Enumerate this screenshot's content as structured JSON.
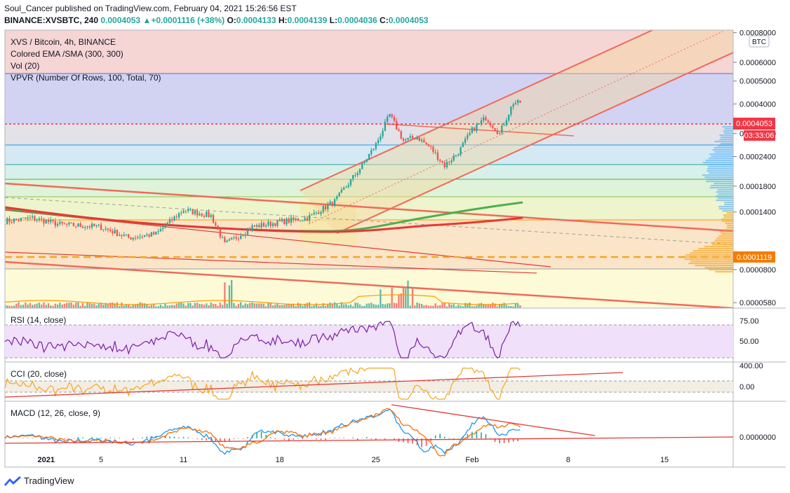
{
  "header": {
    "publisher_line": "Soul_Cancer published on TradingView.com, February 04, 2021 15:26:56 EST",
    "symbol": "BINANCE:XVSBTC, 240",
    "last": "0.0004053",
    "arrow": "▲",
    "change": "+0.0001116 (+38%)",
    "o_label": "O:",
    "o": "0.0004133",
    "h_label": "H:",
    "h": "0.0004139",
    "l_label": "L:",
    "l": "0.0004036",
    "c_label": "C:",
    "c": "0.0004053"
  },
  "legend": {
    "title": "XVS / Bitcoin, 4h, BINANCE",
    "ema": "Colored EMA /SMA (300, 300)",
    "vol": "Vol (20)",
    "vpvr": "VPVR (Number Of Rows, 100, Total, 70)",
    "rsi": "RSI (14, close)",
    "cci": "CCI (20, close)",
    "macd": "MACD (12, 26, close, 9)"
  },
  "axis": {
    "currency": "BTC",
    "price_ticks": [
      "0.0008000",
      "0.0006000",
      "0.0005000",
      "0.0004000",
      "0.0003000",
      "0.0002400",
      "0.0001800",
      "0.0001400",
      "0.0000800",
      "0.0000580"
    ],
    "last_label": "0.0004053",
    "countdown": "03:33:06",
    "poc_label": "0.0001119",
    "rsi_ticks": [
      "75.00",
      "50.00"
    ],
    "cci_ticks": [
      "400.00",
      "0.00"
    ],
    "macd_ticks": [
      "0.0000000"
    ],
    "time_ticks": [
      "2021",
      "5",
      "11",
      "18",
      "25",
      "Feb",
      "8",
      "15"
    ]
  },
  "brand": {
    "name": "TradingView"
  },
  "colors": {
    "up": "#26a69a",
    "down": "#ef5350",
    "channel": "#f06a5a",
    "ema300": "#4caf50",
    "sma300": "#e53935",
    "rsi": "#7b1fa2",
    "cci": "#f5a623",
    "macd": "#2196f3",
    "signal": "#ff6d00",
    "last": "#f23645"
  },
  "chart_data": {
    "type": "candlestick",
    "symbol": "XVS / Bitcoin",
    "interval": "4h",
    "log_scale": true,
    "x_range": [
      "2020-12-29",
      "2021-02-20"
    ],
    "price_range": [
      5.5e-05,
      0.00082
    ],
    "last_price": 0.0004053,
    "open": 0.0004133,
    "high": 0.0004139,
    "low": 0.0004036,
    "close": 0.0004053,
    "poc_price": 0.0001119,
    "price_anchors": [
      {
        "date": "2020-12-29",
        "price": 0.000128
      },
      {
        "date": "2020-12-31",
        "price": 0.000132
      },
      {
        "date": "2021-01-02",
        "price": 0.000124
      },
      {
        "date": "2021-01-05",
        "price": 0.000121
      },
      {
        "date": "2021-01-07",
        "price": 0.000109
      },
      {
        "date": "2021-01-09",
        "price": 0.000113
      },
      {
        "date": "2021-01-11",
        "price": 0.000143
      },
      {
        "date": "2021-01-13",
        "price": 0.000135
      },
      {
        "date": "2021-01-14",
        "price": 0.000102
      },
      {
        "date": "2021-01-16",
        "price": 0.000121
      },
      {
        "date": "2021-01-18",
        "price": 0.000127
      },
      {
        "date": "2021-01-20",
        "price": 0.000132
      },
      {
        "date": "2021-01-22",
        "price": 0.000155
      },
      {
        "date": "2021-01-24",
        "price": 0.00022
      },
      {
        "date": "2021-01-25",
        "price": 0.00027
      },
      {
        "date": "2021-01-26",
        "price": 0.00036
      },
      {
        "date": "2021-01-27",
        "price": 0.00028
      },
      {
        "date": "2021-01-28",
        "price": 0.00029
      },
      {
        "date": "2021-01-29",
        "price": 0.00026
      },
      {
        "date": "2021-01-30",
        "price": 0.00022
      },
      {
        "date": "2021-01-31",
        "price": 0.00025
      },
      {
        "date": "2021-02-01",
        "price": 0.00031
      },
      {
        "date": "2021-02-02",
        "price": 0.00035
      },
      {
        "date": "2021-02-03",
        "price": 0.0003
      },
      {
        "date": "2021-02-04",
        "price": 0.000405
      }
    ],
    "volume_spikes": [
      {
        "date": "2021-01-14",
        "level": 1.0
      },
      {
        "date": "2021-01-25",
        "level": 0.55
      },
      {
        "date": "2021-01-26",
        "level": 0.6
      },
      {
        "date": "2021-01-27",
        "level": 0.8
      }
    ],
    "rsi": {
      "ylim": [
        25,
        90
      ],
      "last": 71
    },
    "cci": {
      "last": 200
    },
    "macd": {
      "last": 0.0
    }
  }
}
